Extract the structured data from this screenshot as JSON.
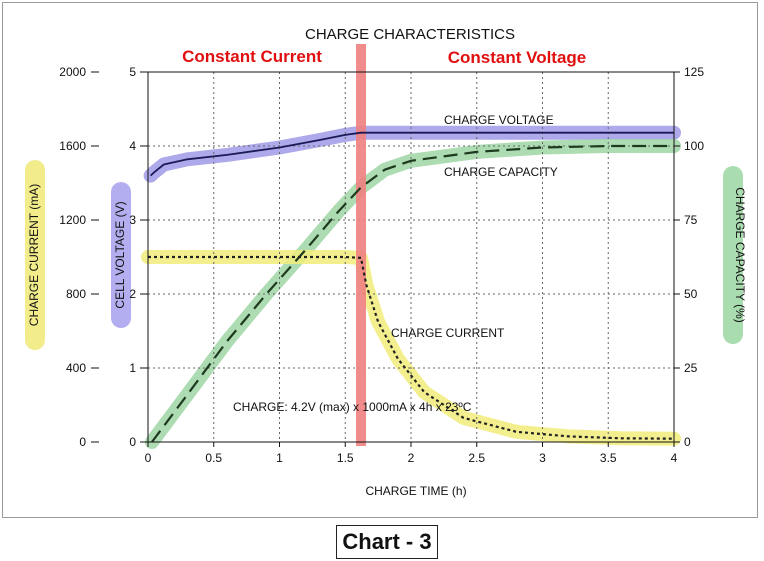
{
  "chart_data": {
    "type": "line",
    "title": "CHARGE CHARACTERISTICS",
    "xlabel": "CHARGE TIME (h)",
    "xlim": [
      0,
      4
    ],
    "x_ticks": [
      "0",
      "0.5",
      "1",
      "1.5",
      "2",
      "2.5",
      "3",
      "3.5",
      "4"
    ],
    "grid": true,
    "y_axes": [
      {
        "label": "CHARGE CURRENT (mA)",
        "range": [
          0,
          2000
        ],
        "ticks": [
          "0",
          "400",
          "800",
          "1200",
          "1600",
          "2000"
        ],
        "label_highlight": "#f2ec8a"
      },
      {
        "label": "CELL VOLTAGE (V)",
        "range": [
          0,
          5
        ],
        "ticks": [
          "0",
          "1",
          "2",
          "3",
          "4",
          "5"
        ],
        "label_highlight": "#b3aef0"
      },
      {
        "label": "CHARGE CAPACITY (%)",
        "range": [
          0,
          125
        ],
        "ticks": [
          "0",
          "25",
          "50",
          "75",
          "100",
          "125"
        ],
        "label_highlight": "#a9ddb0"
      }
    ],
    "phases": [
      {
        "label": "Constant Current",
        "color": "#e01010"
      },
      {
        "label": "Constant Voltage",
        "color": "#e01010"
      }
    ],
    "phase_boundary_x": 1.62,
    "phase_boundary_color": "#f08080",
    "series": [
      {
        "name": "CHARGE VOLTAGE",
        "axis": "CELL VOLTAGE (V)",
        "line_style": "solid",
        "line_color": "#1a1a55",
        "highlight": "#9f9ae6",
        "points": [
          [
            0.02,
            3.6
          ],
          [
            0.05,
            3.65
          ],
          [
            0.12,
            3.75
          ],
          [
            0.3,
            3.82
          ],
          [
            0.6,
            3.88
          ],
          [
            1.0,
            3.98
          ],
          [
            1.3,
            4.08
          ],
          [
            1.5,
            4.15
          ],
          [
            1.62,
            4.18
          ],
          [
            2.0,
            4.18
          ],
          [
            3.0,
            4.18
          ],
          [
            4.0,
            4.18
          ]
        ]
      },
      {
        "name": "CHARGE CAPACITY",
        "axis": "CHARGE CAPACITY (%)",
        "line_style": "dashed",
        "line_color": "#1e3a1e",
        "highlight": "#9fd6a5",
        "points": [
          [
            0.03,
            0
          ],
          [
            0.3,
            16
          ],
          [
            0.6,
            34
          ],
          [
            0.9,
            50
          ],
          [
            1.2,
            65
          ],
          [
            1.45,
            78
          ],
          [
            1.62,
            86
          ],
          [
            1.8,
            92
          ],
          [
            2.0,
            95
          ],
          [
            2.5,
            98
          ],
          [
            3.0,
            99.5
          ],
          [
            3.5,
            100
          ],
          [
            4.0,
            100
          ]
        ]
      },
      {
        "name": "CHARGE CURRENT",
        "axis": "CHARGE CURRENT (mA)",
        "line_style": "dotted",
        "line_color": "#222222",
        "highlight": "#f2ec7a",
        "points": [
          [
            0.0,
            1000
          ],
          [
            0.5,
            1000
          ],
          [
            1.0,
            1000
          ],
          [
            1.5,
            1000
          ],
          [
            1.62,
            995
          ],
          [
            1.66,
            850
          ],
          [
            1.75,
            650
          ],
          [
            1.9,
            450
          ],
          [
            2.1,
            270
          ],
          [
            2.4,
            130
          ],
          [
            2.8,
            55
          ],
          [
            3.2,
            30
          ],
          [
            3.6,
            20
          ],
          [
            4.0,
            18
          ]
        ]
      }
    ],
    "annotations": [
      {
        "text": "CHARGE VOLTAGE"
      },
      {
        "text": "CHARGE CAPACITY"
      },
      {
        "text": "CHARGE CURRENT"
      },
      {
        "text": "CHARGE: 4.2V (max) x 1000mA x 4h x 23ºC"
      }
    ]
  },
  "caption": "Chart - 3"
}
